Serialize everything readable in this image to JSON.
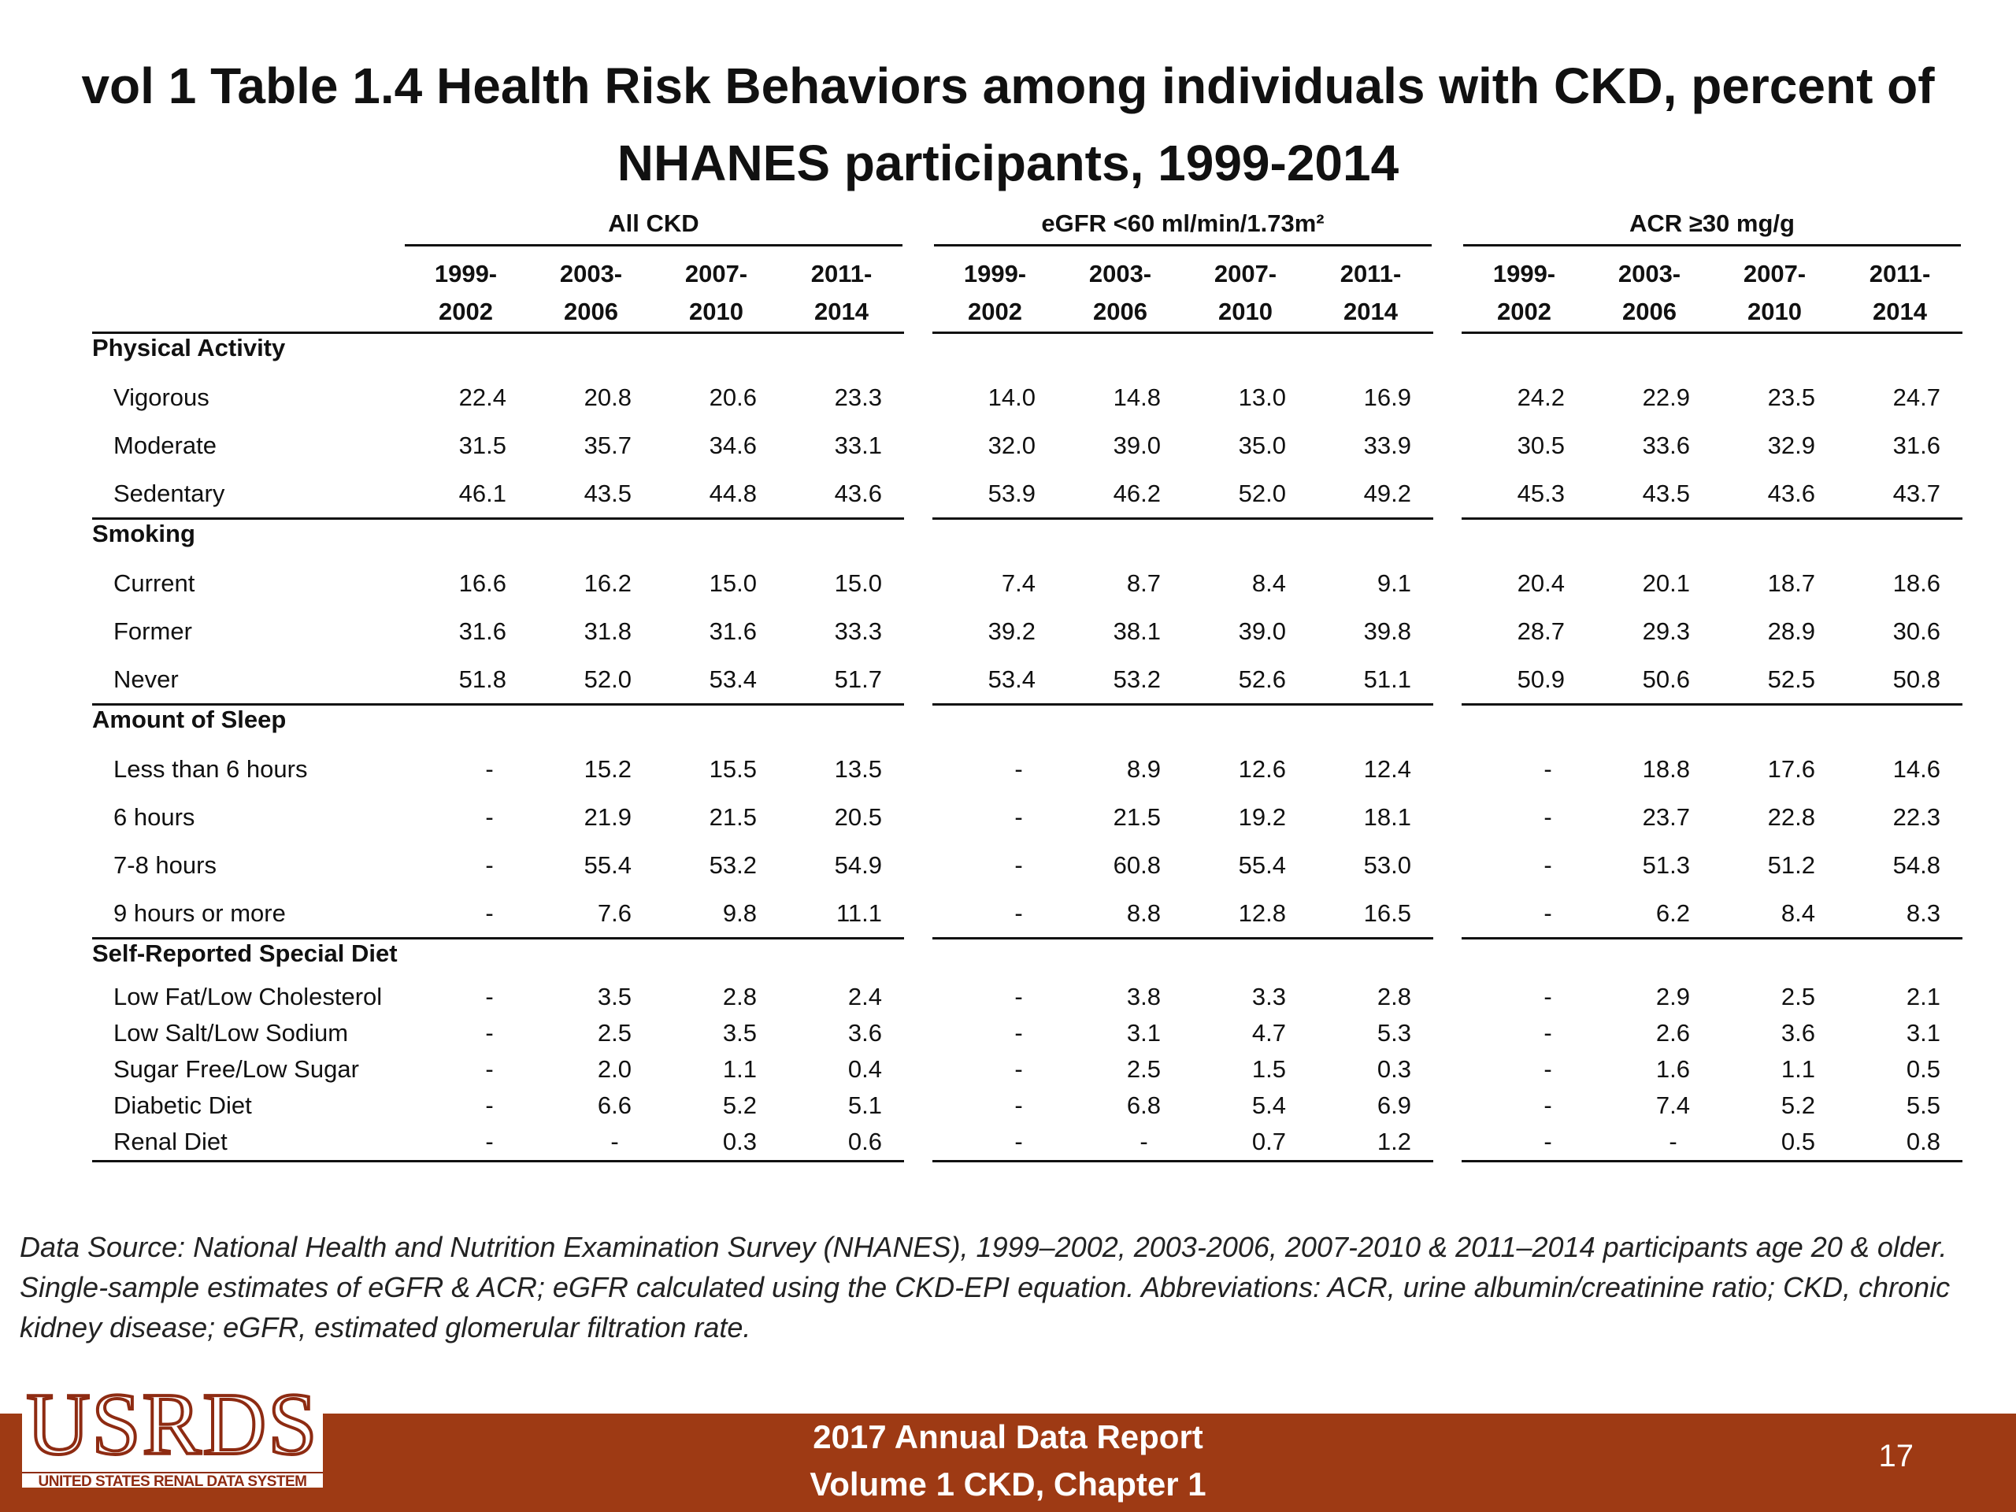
{
  "title_line1": "vol 1 Table 1.4 Health Risk Behaviors among individuals with CKD, percent of",
  "title_line2": "NHANES participants, 1999-2014",
  "groups": [
    "All CKD",
    "eGFR <60 ml/min/1.73m²",
    "ACR ≥30 mg/g"
  ],
  "years": [
    {
      "start": "1999-",
      "end": "2002"
    },
    {
      "start": "2003-",
      "end": "2006"
    },
    {
      "start": "2007-",
      "end": "2010"
    },
    {
      "start": "2011-",
      "end": "2014"
    }
  ],
  "sections": [
    {
      "name": "Physical Activity",
      "rows": [
        {
          "label": "Vigorous",
          "values": [
            "22.4",
            "20.8",
            "20.6",
            "23.3",
            "14.0",
            "14.8",
            "13.0",
            "16.9",
            "24.2",
            "22.9",
            "23.5",
            "24.7"
          ]
        },
        {
          "label": "Moderate",
          "values": [
            "31.5",
            "35.7",
            "34.6",
            "33.1",
            "32.0",
            "39.0",
            "35.0",
            "33.9",
            "30.5",
            "33.6",
            "32.9",
            "31.6"
          ]
        },
        {
          "label": "Sedentary",
          "values": [
            "46.1",
            "43.5",
            "44.8",
            "43.6",
            "53.9",
            "46.2",
            "52.0",
            "49.2",
            "45.3",
            "43.5",
            "43.6",
            "43.7"
          ]
        }
      ]
    },
    {
      "name": "Smoking",
      "rows": [
        {
          "label": "Current",
          "values": [
            "16.6",
            "16.2",
            "15.0",
            "15.0",
            "7.4",
            "8.7",
            "8.4",
            "9.1",
            "20.4",
            "20.1",
            "18.7",
            "18.6"
          ]
        },
        {
          "label": "Former",
          "values": [
            "31.6",
            "31.8",
            "31.6",
            "33.3",
            "39.2",
            "38.1",
            "39.0",
            "39.8",
            "28.7",
            "29.3",
            "28.9",
            "30.6"
          ]
        },
        {
          "label": "Never",
          "values": [
            "51.8",
            "52.0",
            "53.4",
            "51.7",
            "53.4",
            "53.2",
            "52.6",
            "51.1",
            "50.9",
            "50.6",
            "52.5",
            "50.8"
          ]
        }
      ]
    },
    {
      "name": "Amount of Sleep",
      "rows": [
        {
          "label": "Less than 6 hours",
          "values": [
            "-",
            "15.2",
            "15.5",
            "13.5",
            "-",
            "8.9",
            "12.6",
            "12.4",
            "-",
            "18.8",
            "17.6",
            "14.6"
          ]
        },
        {
          "label": "6 hours",
          "values": [
            "-",
            "21.9",
            "21.5",
            "20.5",
            "-",
            "21.5",
            "19.2",
            "18.1",
            "-",
            "23.7",
            "22.8",
            "22.3"
          ]
        },
        {
          "label": "7-8 hours",
          "values": [
            "-",
            "55.4",
            "53.2",
            "54.9",
            "-",
            "60.8",
            "55.4",
            "53.0",
            "-",
            "51.3",
            "51.2",
            "54.8"
          ]
        },
        {
          "label": "9 hours or more",
          "values": [
            "-",
            "7.6",
            "9.8",
            "11.1",
            "-",
            "8.8",
            "12.8",
            "16.5",
            "-",
            "6.2",
            "8.4",
            "8.3"
          ]
        }
      ]
    },
    {
      "name": "Self-Reported Special Diet",
      "compact": true,
      "rows": [
        {
          "label": "Low Fat/Low Cholesterol",
          "values": [
            "-",
            "3.5",
            "2.8",
            "2.4",
            "-",
            "3.8",
            "3.3",
            "2.8",
            "-",
            "2.9",
            "2.5",
            "2.1"
          ]
        },
        {
          "label": "Low Salt/Low Sodium",
          "values": [
            "-",
            "2.5",
            "3.5",
            "3.6",
            "-",
            "3.1",
            "4.7",
            "5.3",
            "-",
            "2.6",
            "3.6",
            "3.1"
          ]
        },
        {
          "label": "Sugar Free/Low Sugar",
          "values": [
            "-",
            "2.0",
            "1.1",
            "0.4",
            "-",
            "2.5",
            "1.5",
            "0.3",
            "-",
            "1.6",
            "1.1",
            "0.5"
          ]
        },
        {
          "label": "Diabetic Diet",
          "values": [
            "-",
            "6.6",
            "5.2",
            "5.1",
            "-",
            "6.8",
            "5.4",
            "6.9",
            "-",
            "7.4",
            "5.2",
            "5.5"
          ]
        },
        {
          "label": "Renal Diet",
          "values": [
            "-",
            "-",
            "0.3",
            "0.6",
            "-",
            "-",
            "0.7",
            "1.2",
            "-",
            "-",
            "0.5",
            "0.8"
          ]
        }
      ]
    }
  ],
  "note": "Data Source: National Health and Nutrition Examination Survey (NHANES), 1999–2002, 2003-2006, 2007-2010 & 2011–2014 participants age 20 & older. Single-sample estimates of eGFR & ACR; eGFR calculated using the CKD-EPI equation. Abbreviations: ACR, urine albumin/creatinine ratio; CKD, chronic kidney disease; eGFR, estimated glomerular filtration rate.",
  "logo": {
    "text": "USRDS",
    "subtitle": "UNITED STATES RENAL DATA SYSTEM"
  },
  "footer": {
    "line1": "2017 Annual Data Report",
    "line2": "Volume 1 CKD, Chapter 1",
    "page": "17"
  },
  "colors": {
    "footer_bar": "#9e3a14",
    "logo": "#8e2b12"
  }
}
